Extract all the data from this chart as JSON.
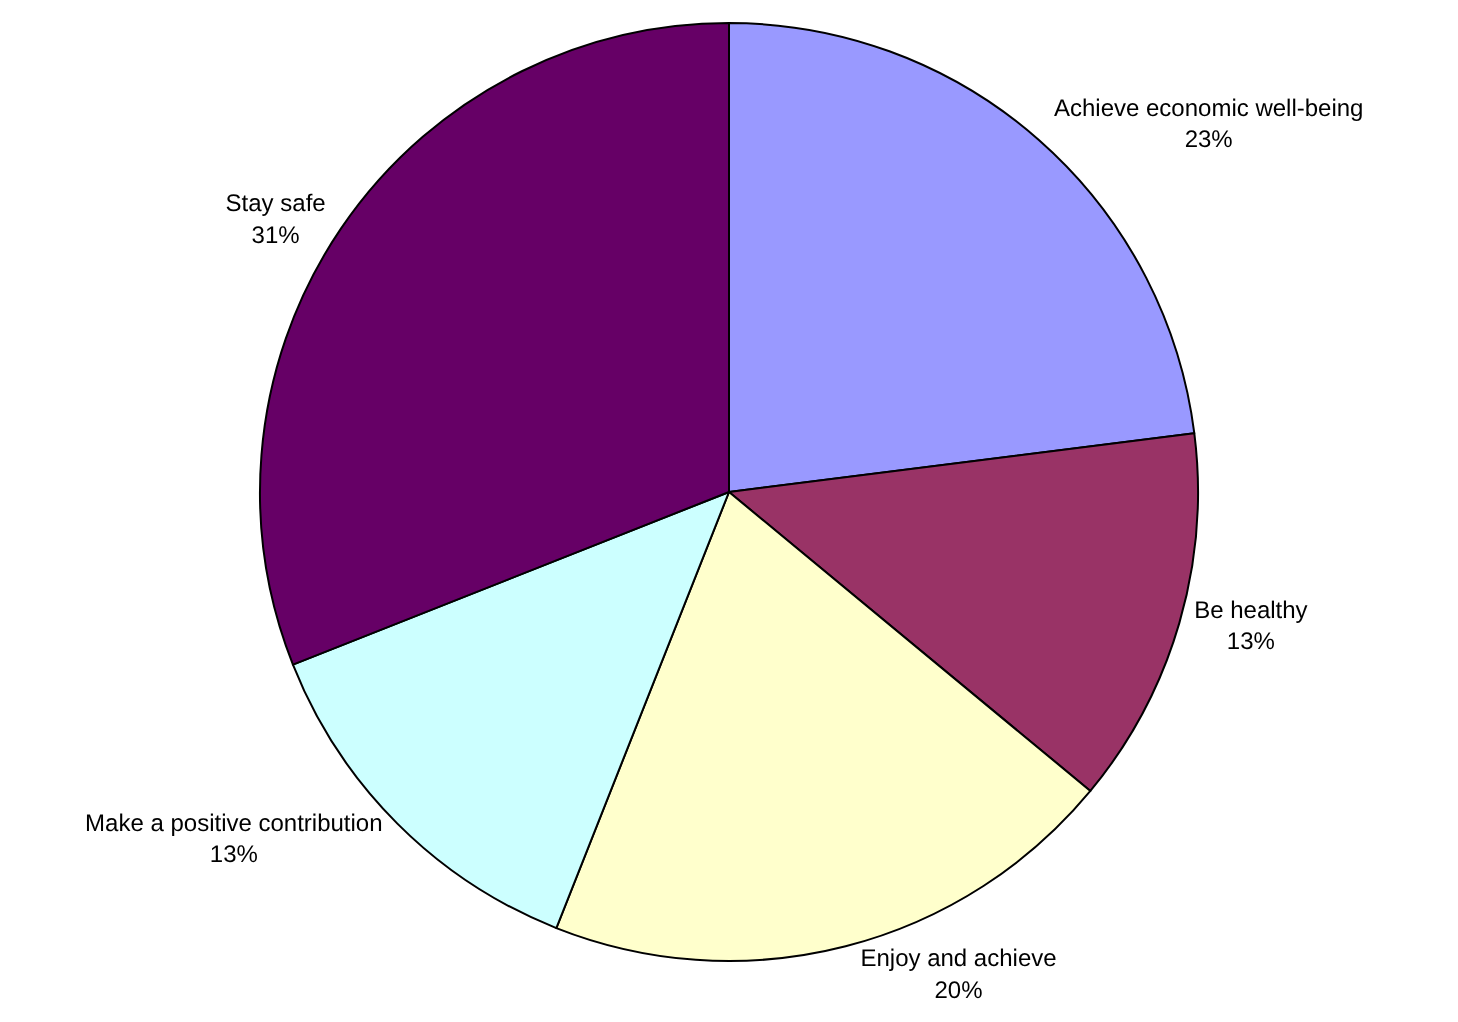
{
  "chart_data": {
    "type": "pie",
    "categories": [
      "Achieve economic well-being",
      "Be healthy",
      "Enjoy and achieve",
      "Make a positive contribution",
      "Stay safe"
    ],
    "values": [
      23,
      13,
      20,
      13,
      31
    ],
    "value_labels": [
      "23%",
      "13%",
      "20%",
      "13%",
      "31%"
    ],
    "colors": [
      "#9999ff",
      "#993366",
      "#ffffcc",
      "#ccffff",
      "#660066"
    ],
    "legend": false
  }
}
